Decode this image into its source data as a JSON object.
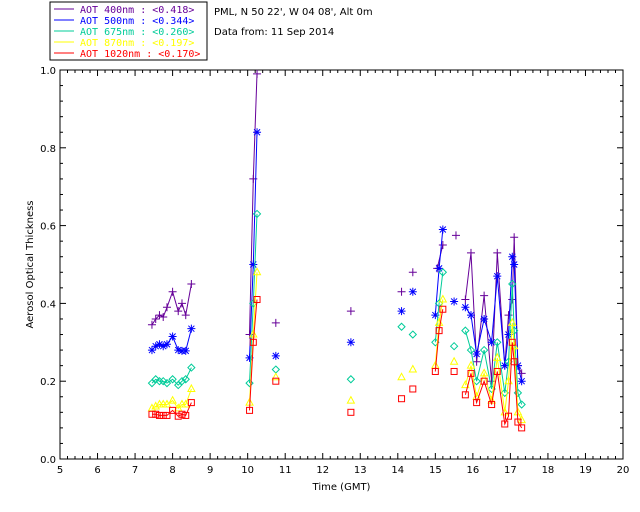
{
  "chart_data": {
    "type": "line",
    "info": [
      "PML, N 50 22', W 04 08', Alt 0m",
      "Data from: 11 Sep 2014"
    ],
    "xlabel": "Time (GMT)",
    "ylabel": "Aerosol Optical Thickness",
    "xlim": [
      5,
      20
    ],
    "ylim": [
      0,
      1.0
    ],
    "x_ticks": [
      5,
      6,
      7,
      8,
      9,
      10,
      11,
      12,
      13,
      14,
      15,
      16,
      17,
      18,
      19,
      20
    ],
    "y_ticks": [
      0.0,
      0.2,
      0.4,
      0.6,
      0.8,
      1.0
    ],
    "y_tick_labels": [
      "0.0",
      "0.2",
      "0.4",
      "0.6",
      "0.8",
      "1.0"
    ],
    "legend_position": "top-left",
    "grid": false,
    "series": [
      {
        "name": "AOT  400nm : <0.418>",
        "color": "#660099",
        "marker": "plus",
        "segments": [
          [
            [
              7.45,
              0.345
            ],
            [
              7.55,
              0.36
            ],
            [
              7.65,
              0.37
            ],
            [
              7.75,
              0.365
            ],
            [
              7.85,
              0.39
            ],
            [
              8.0,
              0.43
            ],
            [
              8.15,
              0.38
            ],
            [
              8.25,
              0.4
            ],
            [
              8.35,
              0.37
            ],
            [
              8.5,
              0.45
            ]
          ],
          [
            [
              10.05,
              0.32
            ],
            [
              10.15,
              0.72
            ],
            [
              10.25,
              0.99
            ]
          ],
          [
            [
              10.75,
              0.35
            ]
          ],
          [
            [
              12.75,
              0.38
            ]
          ],
          [
            [
              14.1,
              0.43
            ]
          ],
          [
            [
              14.4,
              0.48
            ]
          ],
          [
            [
              15.05,
              0.49
            ],
            [
              15.2,
              0.55
            ]
          ],
          [
            [
              15.55,
              0.575
            ]
          ],
          [
            [
              15.8,
              0.41
            ],
            [
              15.95,
              0.53
            ],
            [
              16.1,
              0.25
            ],
            [
              16.3,
              0.42
            ],
            [
              16.5,
              0.2
            ],
            [
              16.65,
              0.53
            ],
            [
              16.85,
              0.24
            ],
            [
              16.95,
              0.37
            ],
            [
              17.05,
              0.41
            ],
            [
              17.1,
              0.57
            ],
            [
              17.2,
              0.24
            ],
            [
              17.3,
              0.22
            ]
          ]
        ]
      },
      {
        "name": "AOT  500nm : <0.344>",
        "color": "#0000ff",
        "marker": "asterisk",
        "segments": [
          [
            [
              7.45,
              0.28
            ],
            [
              7.55,
              0.29
            ],
            [
              7.65,
              0.295
            ],
            [
              7.75,
              0.29
            ],
            [
              7.85,
              0.295
            ],
            [
              8.0,
              0.315
            ],
            [
              8.15,
              0.28
            ],
            [
              8.25,
              0.278
            ],
            [
              8.35,
              0.278
            ],
            [
              8.5,
              0.335
            ]
          ],
          [
            [
              10.05,
              0.26
            ],
            [
              10.15,
              0.5
            ],
            [
              10.25,
              0.84
            ]
          ],
          [
            [
              10.75,
              0.265
            ]
          ],
          [
            [
              12.75,
              0.3
            ]
          ],
          [
            [
              14.1,
              0.38
            ]
          ],
          [
            [
              14.4,
              0.43
            ]
          ],
          [
            [
              15.0,
              0.37
            ],
            [
              15.1,
              0.49
            ],
            [
              15.2,
              0.59
            ]
          ],
          [
            [
              15.5,
              0.405
            ]
          ],
          [
            [
              15.8,
              0.39
            ],
            [
              15.95,
              0.37
            ],
            [
              16.1,
              0.27
            ],
            [
              16.3,
              0.36
            ],
            [
              16.5,
              0.3
            ],
            [
              16.65,
              0.47
            ],
            [
              16.85,
              0.24
            ],
            [
              16.95,
              0.32
            ],
            [
              17.05,
              0.52
            ],
            [
              17.1,
              0.5
            ],
            [
              17.2,
              0.24
            ],
            [
              17.3,
              0.2
            ]
          ]
        ]
      },
      {
        "name": "AOT  675nm : <0.260>",
        "color": "#00cc99",
        "marker": "diamond",
        "segments": [
          [
            [
              7.45,
              0.195
            ],
            [
              7.55,
              0.205
            ],
            [
              7.65,
              0.2
            ],
            [
              7.75,
              0.2
            ],
            [
              7.85,
              0.195
            ],
            [
              8.0,
              0.205
            ],
            [
              8.15,
              0.19
            ],
            [
              8.25,
              0.2
            ],
            [
              8.35,
              0.205
            ],
            [
              8.5,
              0.235
            ]
          ],
          [
            [
              10.05,
              0.195
            ],
            [
              10.15,
              0.4
            ],
            [
              10.25,
              0.63
            ]
          ],
          [
            [
              10.75,
              0.23
            ]
          ],
          [
            [
              12.75,
              0.205
            ]
          ],
          [
            [
              14.1,
              0.34
            ]
          ],
          [
            [
              14.4,
              0.32
            ]
          ],
          [
            [
              15.0,
              0.3
            ],
            [
              15.1,
              0.4
            ],
            [
              15.2,
              0.48
            ]
          ],
          [
            [
              15.5,
              0.29
            ]
          ],
          [
            [
              15.8,
              0.33
            ],
            [
              15.95,
              0.28
            ],
            [
              16.1,
              0.2
            ],
            [
              16.3,
              0.28
            ],
            [
              16.5,
              0.18
            ],
            [
              16.65,
              0.3
            ],
            [
              16.85,
              0.17
            ],
            [
              16.95,
              0.25
            ],
            [
              17.05,
              0.45
            ],
            [
              17.1,
              0.33
            ],
            [
              17.2,
              0.17
            ],
            [
              17.3,
              0.14
            ]
          ]
        ]
      },
      {
        "name": "AOT  870nm : <0.197>",
        "color": "#ffff00",
        "marker": "triangle",
        "segments": [
          [
            [
              7.45,
              0.13
            ],
            [
              7.55,
              0.135
            ],
            [
              7.65,
              0.14
            ],
            [
              7.75,
              0.14
            ],
            [
              7.85,
              0.14
            ],
            [
              8.0,
              0.15
            ],
            [
              8.15,
              0.13
            ],
            [
              8.25,
              0.14
            ],
            [
              8.35,
              0.14
            ],
            [
              8.5,
              0.18
            ]
          ],
          [
            [
              10.05,
              0.145
            ],
            [
              10.15,
              0.32
            ],
            [
              10.25,
              0.48
            ]
          ],
          [
            [
              10.75,
              0.21
            ]
          ],
          [
            [
              12.75,
              0.15
            ]
          ],
          [
            [
              14.1,
              0.21
            ]
          ],
          [
            [
              14.4,
              0.23
            ]
          ],
          [
            [
              15.0,
              0.24
            ],
            [
              15.1,
              0.35
            ],
            [
              15.2,
              0.41
            ]
          ],
          [
            [
              15.5,
              0.25
            ]
          ],
          [
            [
              15.8,
              0.19
            ],
            [
              15.95,
              0.24
            ],
            [
              16.1,
              0.16
            ],
            [
              16.3,
              0.22
            ],
            [
              16.5,
              0.15
            ],
            [
              16.65,
              0.26
            ],
            [
              16.85,
              0.12
            ],
            [
              16.95,
              0.2
            ],
            [
              17.05,
              0.35
            ],
            [
              17.1,
              0.29
            ],
            [
              17.2,
              0.12
            ],
            [
              17.3,
              0.1
            ]
          ]
        ]
      },
      {
        "name": "AOT 1020nm : <0.170>",
        "color": "#ff0000",
        "marker": "square",
        "segments": [
          [
            [
              7.45,
              0.115
            ],
            [
              7.55,
              0.115
            ],
            [
              7.65,
              0.112
            ],
            [
              7.75,
              0.112
            ],
            [
              7.85,
              0.112
            ],
            [
              8.0,
              0.125
            ],
            [
              8.15,
              0.11
            ],
            [
              8.25,
              0.115
            ],
            [
              8.35,
              0.112
            ],
            [
              8.5,
              0.145
            ]
          ],
          [
            [
              10.05,
              0.125
            ],
            [
              10.15,
              0.3
            ],
            [
              10.25,
              0.41
            ]
          ],
          [
            [
              10.75,
              0.2
            ]
          ],
          [
            [
              12.75,
              0.12
            ]
          ],
          [
            [
              14.1,
              0.155
            ]
          ],
          [
            [
              14.4,
              0.18
            ]
          ],
          [
            [
              15.0,
              0.225
            ],
            [
              15.1,
              0.33
            ],
            [
              15.2,
              0.385
            ]
          ],
          [
            [
              15.5,
              0.225
            ]
          ],
          [
            [
              15.8,
              0.165
            ],
            [
              15.95,
              0.22
            ],
            [
              16.1,
              0.145
            ],
            [
              16.3,
              0.2
            ],
            [
              16.5,
              0.14
            ],
            [
              16.65,
              0.225
            ],
            [
              16.85,
              0.09
            ],
            [
              16.95,
              0.11
            ],
            [
              17.05,
              0.3
            ],
            [
              17.1,
              0.25
            ],
            [
              17.2,
              0.095
            ],
            [
              17.3,
              0.08
            ]
          ]
        ]
      }
    ]
  }
}
